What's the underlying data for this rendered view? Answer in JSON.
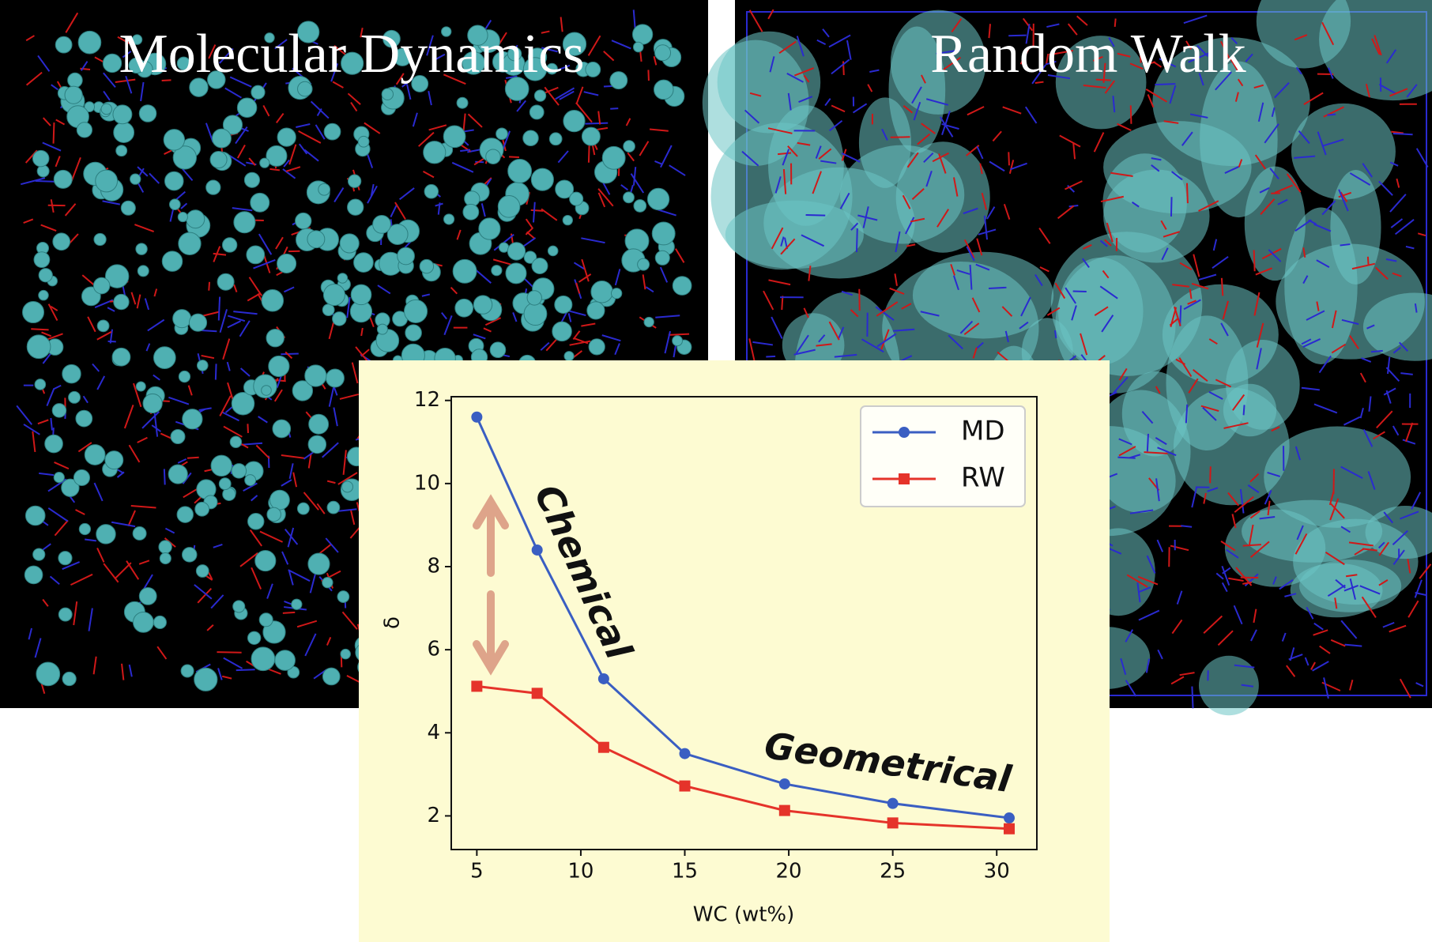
{
  "panel_titles": [
    "Molecular Dynamics",
    "Random Walk"
  ],
  "chart_data": {
    "type": "line",
    "x_label": "WC (wt%)",
    "y_label": "δ",
    "x": [
      5,
      7.9,
      11.1,
      15,
      19.8,
      25,
      30.6
    ],
    "series": [
      {
        "name": "MD",
        "color": "#3a5ec2",
        "marker": "circle",
        "values": [
          11.6,
          8.4,
          5.3,
          3.5,
          2.77,
          2.3,
          1.95
        ]
      },
      {
        "name": "RW",
        "color": "#e5332a",
        "marker": "square",
        "values": [
          5.12,
          4.95,
          3.65,
          2.72,
          2.13,
          1.83,
          1.69
        ]
      }
    ],
    "xlim": [
      3.77,
      31.93
    ],
    "xticks": [
      5,
      10,
      15,
      20,
      25,
      30
    ],
    "ylim": [
      1.19,
      12.09
    ],
    "yticks": [
      2,
      4,
      6,
      8,
      10,
      12
    ],
    "legend": "upper right",
    "annotations": [
      "Chemical",
      "Geometrical"
    ]
  }
}
